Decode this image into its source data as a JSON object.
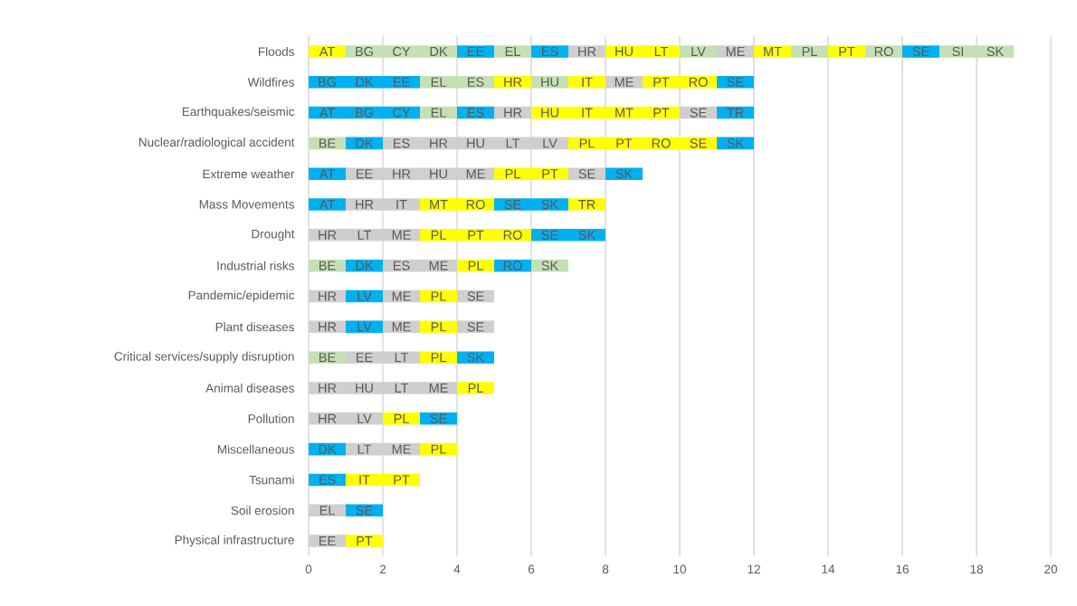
{
  "chart_data": {
    "type": "bar",
    "orientation": "horizontal",
    "stacked": true,
    "grid": "x",
    "xlim": [
      0,
      20
    ],
    "xticks": [
      0,
      2,
      4,
      6,
      8,
      10,
      12,
      14,
      16,
      18,
      20
    ],
    "categories": [
      "Floods",
      "Wildfires",
      "Earthquakes/seismic",
      "Nuclear/radiological accident",
      "Extreme weather",
      "Mass Movements",
      "Drought",
      "Industrial risks",
      "Pandemic/epidemic",
      "Plant diseases",
      "Critical services/supply disruption",
      "Animal diseases",
      "Pollution",
      "Miscellaneous",
      "Tsunami",
      "Soil erosion",
      "Physical infrastructure"
    ],
    "series": [
      {
        "values": [
          1,
          1,
          1,
          1,
          1,
          1,
          1,
          1,
          1,
          1,
          1,
          1,
          1,
          1,
          1,
          1,
          1
        ],
        "value_labels": [
          "AT",
          "BG",
          "AT",
          "BE",
          "AT",
          "AT",
          "HR",
          "BE",
          "HR",
          "HR",
          "BE",
          "HR",
          "HR",
          "DK",
          "ES",
          "EL",
          "EE"
        ],
        "colors": [
          "#ffff00",
          "#00b0f0",
          "#00b0f0",
          "#c5e0b4",
          "#00b0f0",
          "#00b0f0",
          "#d0cece",
          "#c5e0b4",
          "#d0cece",
          "#d0cece",
          "#c5e0b4",
          "#d0cece",
          "#d0cece",
          "#00b0f0",
          "#00b0f0",
          "#d0cece",
          "#d0cece"
        ]
      },
      {
        "values": [
          1,
          1,
          1,
          1,
          1,
          1,
          1,
          1,
          1,
          1,
          1,
          1,
          1,
          1,
          1,
          1,
          1
        ],
        "value_labels": [
          "BG",
          "DK",
          "BG",
          "DK",
          "EE",
          "HR",
          "LT",
          "DK",
          "LV",
          "LV",
          "EE",
          "HU",
          "LV",
          "LT",
          "IT",
          "SE",
          "PT"
        ],
        "colors": [
          "#c5e0b4",
          "#00b0f0",
          "#00b0f0",
          "#00b0f0",
          "#d0cece",
          "#d0cece",
          "#d0cece",
          "#00b0f0",
          "#00b0f0",
          "#00b0f0",
          "#d0cece",
          "#d0cece",
          "#d0cece",
          "#d0cece",
          "#ffff00",
          "#00b0f0",
          "#ffff00"
        ]
      },
      {
        "values": [
          1,
          1,
          1,
          1,
          1,
          1,
          1,
          1,
          1,
          1,
          1,
          1,
          1,
          1,
          1,
          null,
          null
        ],
        "value_labels": [
          "CY",
          "EE",
          "CY",
          "ES",
          "HR",
          "IT",
          "ME",
          "ES",
          "ME",
          "ME",
          "LT",
          "LT",
          "PL",
          "ME",
          "PT",
          null,
          null
        ],
        "colors": [
          "#c5e0b4",
          "#00b0f0",
          "#00b0f0",
          "#d0cece",
          "#d0cece",
          "#d0cece",
          "#d0cece",
          "#d0cece",
          "#d0cece",
          "#d0cece",
          "#d0cece",
          "#d0cece",
          "#ffff00",
          "#d0cece",
          "#ffff00",
          null,
          null
        ]
      },
      {
        "values": [
          1,
          1,
          1,
          1,
          1,
          1,
          1,
          1,
          1,
          1,
          1,
          1,
          1,
          1,
          null,
          null,
          null
        ],
        "value_labels": [
          "DK",
          "EL",
          "EL",
          "HR",
          "HU",
          "MT",
          "PL",
          "ME",
          "PL",
          "PL",
          "PL",
          "ME",
          "SE",
          "PL",
          null,
          null,
          null
        ],
        "colors": [
          "#c5e0b4",
          "#c5e0b4",
          "#c5e0b4",
          "#d0cece",
          "#d0cece",
          "#ffff00",
          "#ffff00",
          "#d0cece",
          "#ffff00",
          "#ffff00",
          "#ffff00",
          "#d0cece",
          "#00b0f0",
          "#ffff00",
          null,
          null,
          null
        ]
      },
      {
        "values": [
          1,
          1,
          1,
          1,
          1,
          1,
          1,
          1,
          1,
          1,
          1,
          1,
          null,
          null,
          null,
          null,
          null
        ],
        "value_labels": [
          "EE",
          "ES",
          "ES",
          "HU",
          "ME",
          "RO",
          "PT",
          "PL",
          "SE",
          "SE",
          "SK",
          "PL",
          null,
          null,
          null,
          null,
          null
        ],
        "colors": [
          "#00b0f0",
          "#c5e0b4",
          "#00b0f0",
          "#d0cece",
          "#d0cece",
          "#ffff00",
          "#ffff00",
          "#ffff00",
          "#d0cece",
          "#d0cece",
          "#00b0f0",
          "#ffff00",
          null,
          null,
          null,
          null,
          null
        ]
      },
      {
        "values": [
          1,
          1,
          1,
          1,
          1,
          1,
          1,
          1,
          null,
          null,
          null,
          null,
          null,
          null,
          null,
          null,
          null
        ],
        "value_labels": [
          "EL",
          "HR",
          "HR",
          "LT",
          "PL",
          "SE",
          "RO",
          "RO",
          null,
          null,
          null,
          null,
          null,
          null,
          null,
          null,
          null
        ],
        "colors": [
          "#c5e0b4",
          "#ffff00",
          "#d0cece",
          "#d0cece",
          "#ffff00",
          "#00b0f0",
          "#ffff00",
          "#00b0f0",
          null,
          null,
          null,
          null,
          null,
          null,
          null,
          null,
          null
        ]
      },
      {
        "values": [
          1,
          1,
          1,
          1,
          1,
          1,
          1,
          1,
          null,
          null,
          null,
          null,
          null,
          null,
          null,
          null,
          null
        ],
        "value_labels": [
          "ES",
          "HU",
          "HU",
          "LV",
          "PT",
          "SK",
          "SE",
          "SK",
          null,
          null,
          null,
          null,
          null,
          null,
          null,
          null,
          null
        ],
        "colors": [
          "#00b0f0",
          "#c5e0b4",
          "#ffff00",
          "#d0cece",
          "#ffff00",
          "#00b0f0",
          "#00b0f0",
          "#c5e0b4",
          null,
          null,
          null,
          null,
          null,
          null,
          null,
          null,
          null
        ]
      },
      {
        "values": [
          1,
          1,
          1,
          1,
          1,
          1,
          1,
          null,
          null,
          null,
          null,
          null,
          null,
          null,
          null,
          null,
          null
        ],
        "value_labels": [
          "HR",
          "IT",
          "IT",
          "PL",
          "SE",
          "TR",
          "SK",
          null,
          null,
          null,
          null,
          null,
          null,
          null,
          null,
          null,
          null
        ],
        "colors": [
          "#d0cece",
          "#ffff00",
          "#ffff00",
          "#ffff00",
          "#d0cece",
          "#ffff00",
          "#00b0f0",
          null,
          null,
          null,
          null,
          null,
          null,
          null,
          null,
          null,
          null
        ]
      },
      {
        "values": [
          1,
          1,
          1,
          1,
          1,
          null,
          null,
          null,
          null,
          null,
          null,
          null,
          null,
          null,
          null,
          null,
          null
        ],
        "value_labels": [
          "HU",
          "ME",
          "MT",
          "PT",
          "SK",
          null,
          null,
          null,
          null,
          null,
          null,
          null,
          null,
          null,
          null,
          null,
          null
        ],
        "colors": [
          "#ffff00",
          "#d0cece",
          "#ffff00",
          "#ffff00",
          "#00b0f0",
          null,
          null,
          null,
          null,
          null,
          null,
          null,
          null,
          null,
          null,
          null,
          null
        ]
      },
      {
        "values": [
          1,
          1,
          1,
          1,
          null,
          null,
          null,
          null,
          null,
          null,
          null,
          null,
          null,
          null,
          null,
          null,
          null
        ],
        "value_labels": [
          "LT",
          "PT",
          "PT",
          "RO",
          null,
          null,
          null,
          null,
          null,
          null,
          null,
          null,
          null,
          null,
          null,
          null,
          null
        ],
        "colors": [
          "#ffff00",
          "#ffff00",
          "#ffff00",
          "#ffff00",
          null,
          null,
          null,
          null,
          null,
          null,
          null,
          null,
          null,
          null,
          null,
          null,
          null
        ]
      },
      {
        "values": [
          1,
          1,
          1,
          1,
          null,
          null,
          null,
          null,
          null,
          null,
          null,
          null,
          null,
          null,
          null,
          null,
          null
        ],
        "value_labels": [
          "LV",
          "RO",
          "SE",
          "SE",
          null,
          null,
          null,
          null,
          null,
          null,
          null,
          null,
          null,
          null,
          null,
          null,
          null
        ],
        "colors": [
          "#c5e0b4",
          "#ffff00",
          "#d0cece",
          "#ffff00",
          null,
          null,
          null,
          null,
          null,
          null,
          null,
          null,
          null,
          null,
          null,
          null,
          null
        ]
      },
      {
        "values": [
          1,
          1,
          1,
          1,
          null,
          null,
          null,
          null,
          null,
          null,
          null,
          null,
          null,
          null,
          null,
          null,
          null
        ],
        "value_labels": [
          "ME",
          "SE",
          "TR",
          "SK",
          null,
          null,
          null,
          null,
          null,
          null,
          null,
          null,
          null,
          null,
          null,
          null,
          null
        ],
        "colors": [
          "#d0cece",
          "#00b0f0",
          "#00b0f0",
          "#00b0f0",
          null,
          null,
          null,
          null,
          null,
          null,
          null,
          null,
          null,
          null,
          null,
          null,
          null
        ]
      },
      {
        "values": [
          1,
          null,
          null,
          null,
          null,
          null,
          null,
          null,
          null,
          null,
          null,
          null,
          null,
          null,
          null,
          null,
          null
        ],
        "value_labels": [
          "MT",
          null,
          null,
          null,
          null,
          null,
          null,
          null,
          null,
          null,
          null,
          null,
          null,
          null,
          null,
          null,
          null
        ],
        "colors": [
          "#ffff00",
          null,
          null,
          null,
          null,
          null,
          null,
          null,
          null,
          null,
          null,
          null,
          null,
          null,
          null,
          null,
          null
        ]
      },
      {
        "values": [
          1,
          null,
          null,
          null,
          null,
          null,
          null,
          null,
          null,
          null,
          null,
          null,
          null,
          null,
          null,
          null,
          null
        ],
        "value_labels": [
          "PL",
          null,
          null,
          null,
          null,
          null,
          null,
          null,
          null,
          null,
          null,
          null,
          null,
          null,
          null,
          null,
          null
        ],
        "colors": [
          "#c5e0b4",
          null,
          null,
          null,
          null,
          null,
          null,
          null,
          null,
          null,
          null,
          null,
          null,
          null,
          null,
          null,
          null
        ]
      },
      {
        "values": [
          1,
          null,
          null,
          null,
          null,
          null,
          null,
          null,
          null,
          null,
          null,
          null,
          null,
          null,
          null,
          null,
          null
        ],
        "value_labels": [
          "PT",
          null,
          null,
          null,
          null,
          null,
          null,
          null,
          null,
          null,
          null,
          null,
          null,
          null,
          null,
          null,
          null
        ],
        "colors": [
          "#ffff00",
          null,
          null,
          null,
          null,
          null,
          null,
          null,
          null,
          null,
          null,
          null,
          null,
          null,
          null,
          null,
          null
        ]
      },
      {
        "values": [
          1,
          null,
          null,
          null,
          null,
          null,
          null,
          null,
          null,
          null,
          null,
          null,
          null,
          null,
          null,
          null,
          null
        ],
        "value_labels": [
          "RO",
          null,
          null,
          null,
          null,
          null,
          null,
          null,
          null,
          null,
          null,
          null,
          null,
          null,
          null,
          null,
          null
        ],
        "colors": [
          "#c5e0b4",
          null,
          null,
          null,
          null,
          null,
          null,
          null,
          null,
          null,
          null,
          null,
          null,
          null,
          null,
          null,
          null
        ]
      },
      {
        "values": [
          1,
          null,
          null,
          null,
          null,
          null,
          null,
          null,
          null,
          null,
          null,
          null,
          null,
          null,
          null,
          null,
          null
        ],
        "value_labels": [
          "SE",
          null,
          null,
          null,
          null,
          null,
          null,
          null,
          null,
          null,
          null,
          null,
          null,
          null,
          null,
          null,
          null
        ],
        "colors": [
          "#00b0f0",
          null,
          null,
          null,
          null,
          null,
          null,
          null,
          null,
          null,
          null,
          null,
          null,
          null,
          null,
          null,
          null
        ]
      },
      {
        "values": [
          1,
          null,
          null,
          null,
          null,
          null,
          null,
          null,
          null,
          null,
          null,
          null,
          null,
          null,
          null,
          null,
          null
        ],
        "value_labels": [
          "SI",
          null,
          null,
          null,
          null,
          null,
          null,
          null,
          null,
          null,
          null,
          null,
          null,
          null,
          null,
          null,
          null
        ],
        "colors": [
          "#c5e0b4",
          null,
          null,
          null,
          null,
          null,
          null,
          null,
          null,
          null,
          null,
          null,
          null,
          null,
          null,
          null,
          null
        ]
      },
      {
        "values": [
          1,
          null,
          null,
          null,
          null,
          null,
          null,
          null,
          null,
          null,
          null,
          null,
          null,
          null,
          null,
          null,
          null
        ],
        "value_labels": [
          "SK",
          null,
          null,
          null,
          null,
          null,
          null,
          null,
          null,
          null,
          null,
          null,
          null,
          null,
          null,
          null,
          null
        ],
        "colors": [
          "#c5e0b4",
          null,
          null,
          null,
          null,
          null,
          null,
          null,
          null,
          null,
          null,
          null,
          null,
          null,
          null,
          null,
          null
        ]
      }
    ]
  }
}
